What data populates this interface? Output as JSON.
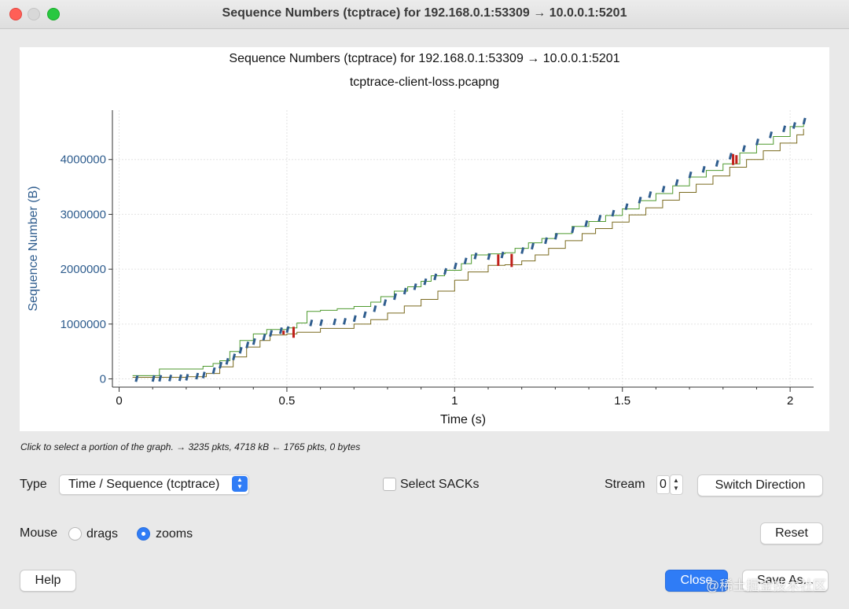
{
  "window": {
    "title": "Sequence Numbers (tcptrace) for 192.168.0.1:53309 → 10.0.0.1:5201"
  },
  "graph": {
    "title": "Sequence Numbers (tcptrace) for 192.168.0.1:53309 → 10.0.0.1:5201",
    "subtitle": "tcptrace-client-loss.pcapng",
    "hint": "Click to select a portion of the graph. → 3235 pkts, 4718 kB ← 1765 pkts, 0 bytes"
  },
  "chart_data": {
    "type": "line",
    "title": "Sequence Numbers (tcptrace) for 192.168.0.1:53309 → 10.0.0.1:5201",
    "subtitle": "tcptrace-client-loss.pcapng",
    "xlabel": "Time (s)",
    "ylabel": "Sequence Number (B)",
    "xlim": [
      -0.02,
      2.07
    ],
    "ylim": [
      -150000,
      4900000
    ],
    "x_ticks": [
      0,
      0.5,
      1,
      1.5,
      2
    ],
    "x_tick_labels": [
      "0",
      "0.5",
      "1",
      "1.5",
      "2"
    ],
    "y_ticks": [
      0,
      1000000,
      2000000,
      3000000,
      4000000
    ],
    "y_tick_labels": [
      "0",
      "1000000",
      "2000000",
      "3000000",
      "4000000"
    ],
    "grid": true,
    "legend": "none",
    "colors": {
      "segments": "#2f5d8e",
      "receive_window": "#4e9a2e",
      "ack": "#7a6a1e",
      "retransmit": "#c0201a"
    },
    "series": [
      {
        "points": [
          [
            0.04,
            60000
          ],
          [
            0.12,
            60000
          ],
          [
            0.12,
            180000
          ],
          [
            0.2,
            180000
          ],
          [
            0.25,
            230000
          ],
          [
            0.28,
            280000
          ],
          [
            0.3,
            330000
          ],
          [
            0.33,
            500000
          ],
          [
            0.36,
            700000
          ],
          [
            0.4,
            820000
          ],
          [
            0.44,
            900000
          ],
          [
            0.5,
            930000
          ],
          [
            0.53,
            1020000
          ],
          [
            0.56,
            1230000
          ],
          [
            0.6,
            1250000
          ],
          [
            0.65,
            1280000
          ],
          [
            0.7,
            1320000
          ],
          [
            0.75,
            1400000
          ],
          [
            0.78,
            1500000
          ],
          [
            0.82,
            1600000
          ],
          [
            0.86,
            1680000
          ],
          [
            0.9,
            1780000
          ],
          [
            0.93,
            1880000
          ],
          [
            0.97,
            1980000
          ],
          [
            1.02,
            2100000
          ],
          [
            1.05,
            2260000
          ],
          [
            1.1,
            2280000
          ],
          [
            1.15,
            2300000
          ],
          [
            1.18,
            2380000
          ],
          [
            1.22,
            2480000
          ],
          [
            1.26,
            2560000
          ],
          [
            1.3,
            2650000
          ],
          [
            1.35,
            2780000
          ],
          [
            1.4,
            2870000
          ],
          [
            1.45,
            2980000
          ],
          [
            1.5,
            3100000
          ],
          [
            1.55,
            3250000
          ],
          [
            1.6,
            3380000
          ],
          [
            1.65,
            3520000
          ],
          [
            1.7,
            3680000
          ],
          [
            1.75,
            3800000
          ],
          [
            1.8,
            3920000
          ],
          [
            1.85,
            4120000
          ],
          [
            1.9,
            4280000
          ],
          [
            1.95,
            4420000
          ],
          [
            2.0,
            4600000
          ],
          [
            2.04,
            4720000
          ]
        ]
      },
      {
        "points": [
          [
            0.04,
            30000
          ],
          [
            0.2,
            40000
          ],
          [
            0.26,
            100000
          ],
          [
            0.3,
            220000
          ],
          [
            0.34,
            400000
          ],
          [
            0.38,
            580000
          ],
          [
            0.42,
            700000
          ],
          [
            0.45,
            800000
          ],
          [
            0.5,
            820000
          ],
          [
            0.53,
            850000
          ],
          [
            0.6,
            920000
          ],
          [
            0.7,
            1000000
          ],
          [
            0.75,
            1080000
          ],
          [
            0.8,
            1200000
          ],
          [
            0.85,
            1330000
          ],
          [
            0.9,
            1450000
          ],
          [
            0.95,
            1600000
          ],
          [
            1.0,
            1800000
          ],
          [
            1.04,
            1950000
          ],
          [
            1.1,
            2070000
          ],
          [
            1.15,
            2080000
          ],
          [
            1.2,
            2150000
          ],
          [
            1.24,
            2260000
          ],
          [
            1.28,
            2380000
          ],
          [
            1.33,
            2520000
          ],
          [
            1.38,
            2650000
          ],
          [
            1.42,
            2740000
          ],
          [
            1.47,
            2860000
          ],
          [
            1.52,
            2990000
          ],
          [
            1.57,
            3120000
          ],
          [
            1.62,
            3260000
          ],
          [
            1.67,
            3400000
          ],
          [
            1.72,
            3550000
          ],
          [
            1.77,
            3700000
          ],
          [
            1.82,
            3860000
          ],
          [
            1.87,
            4000000
          ],
          [
            1.92,
            4160000
          ],
          [
            1.97,
            4300000
          ],
          [
            2.02,
            4450000
          ],
          [
            2.04,
            4560000
          ]
        ]
      },
      {
        "points": [
          [
            0.05,
            5000
          ],
          [
            0.1,
            8000
          ],
          [
            0.12,
            12000
          ],
          [
            0.15,
            16000
          ],
          [
            0.18,
            20000
          ],
          [
            0.2,
            30000
          ],
          [
            0.23,
            50000
          ],
          [
            0.25,
            70000
          ],
          [
            0.28,
            150000
          ],
          [
            0.3,
            250000
          ],
          [
            0.32,
            320000
          ],
          [
            0.34,
            400000
          ],
          [
            0.36,
            520000
          ],
          [
            0.38,
            620000
          ],
          [
            0.4,
            680000
          ],
          [
            0.43,
            760000
          ],
          [
            0.45,
            830000
          ],
          [
            0.48,
            880000
          ],
          [
            0.5,
            900000
          ],
          [
            0.57,
            1020000
          ],
          [
            0.6,
            1025000
          ],
          [
            0.64,
            1040000
          ],
          [
            0.67,
            1050000
          ],
          [
            0.7,
            1100000
          ],
          [
            0.73,
            1170000
          ],
          [
            0.76,
            1280000
          ],
          [
            0.79,
            1390000
          ],
          [
            0.82,
            1500000
          ],
          [
            0.85,
            1600000
          ],
          [
            0.88,
            1680000
          ],
          [
            0.91,
            1770000
          ],
          [
            0.94,
            1860000
          ],
          [
            0.97,
            1960000
          ],
          [
            1.0,
            2060000
          ],
          [
            1.03,
            2150000
          ],
          [
            1.06,
            2240000
          ],
          [
            1.1,
            2230000
          ],
          [
            1.14,
            2260000
          ],
          [
            1.2,
            2340000
          ],
          [
            1.23,
            2420000
          ],
          [
            1.27,
            2520000
          ],
          [
            1.3,
            2600000
          ],
          [
            1.35,
            2720000
          ],
          [
            1.39,
            2830000
          ],
          [
            1.43,
            2930000
          ],
          [
            1.47,
            3020000
          ],
          [
            1.51,
            3140000
          ],
          [
            1.55,
            3260000
          ],
          [
            1.58,
            3360000
          ],
          [
            1.62,
            3460000
          ],
          [
            1.66,
            3580000
          ],
          [
            1.7,
            3720000
          ],
          [
            1.74,
            3820000
          ],
          [
            1.78,
            3930000
          ],
          [
            1.82,
            4060000
          ],
          [
            1.86,
            4200000
          ],
          [
            1.9,
            4320000
          ],
          [
            1.94,
            4450000
          ],
          [
            1.98,
            4560000
          ],
          [
            2.01,
            4620000
          ],
          [
            2.04,
            4700000
          ]
        ]
      },
      {
        "points": [
          [
            0.49,
            810000
          ],
          [
            0.49,
            880000
          ],
          [
            0.52,
            750000
          ],
          [
            0.52,
            950000
          ],
          [
            1.13,
            2060000
          ],
          [
            1.13,
            2270000
          ],
          [
            1.17,
            2040000
          ],
          [
            1.17,
            2280000
          ],
          [
            1.83,
            3900000
          ],
          [
            1.83,
            4100000
          ],
          [
            1.84,
            3920000
          ],
          [
            1.84,
            4080000
          ]
        ]
      }
    ]
  },
  "controls": {
    "type_label": "Type",
    "type_value": "Time / Sequence (tcptrace)",
    "select_sacks_label": "Select SACKs",
    "stream_label": "Stream",
    "stream_value": "0",
    "switch_direction_label": "Switch Direction",
    "mouse_label": "Mouse",
    "mouse_drags_label": "drags",
    "mouse_zooms_label": "zooms",
    "mouse_mode": "zooms",
    "reset_label": "Reset",
    "help_label": "Help",
    "close_label": "Close",
    "save_as_label": "Save As..."
  },
  "watermark": "@稀土掘金技术社区"
}
